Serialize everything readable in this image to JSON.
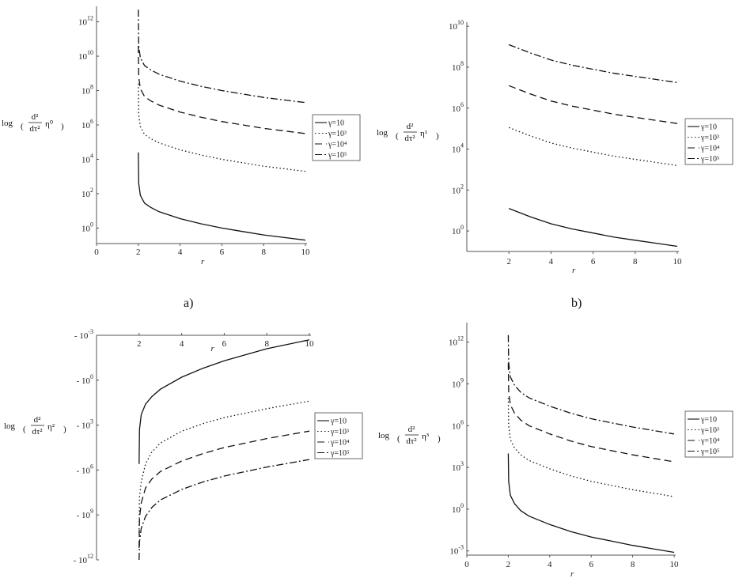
{
  "panel_labels": [
    "a)",
    "b)"
  ],
  "chart_data": [
    {
      "type": "line",
      "panel": "a",
      "xlabel": "r",
      "ylabel_lines": [
        "log",
        "d²",
        "dτ²",
        "η⁰"
      ],
      "xlim": [
        0,
        10
      ],
      "x_ticks": [
        0,
        2,
        4,
        6,
        8,
        10
      ],
      "y_scale": "log",
      "y_ticks": [
        "10^0",
        "10^2",
        "10^4",
        "10^6",
        "10^8",
        "10^10",
        "10^12"
      ],
      "legend": {
        "position": "right",
        "entries": [
          "γ=10",
          "γ=10³",
          "γ=10⁴",
          "γ=10⁵"
        ]
      },
      "series": [
        {
          "name": "γ=10",
          "style": "solid",
          "x": [
            2.001,
            2.02,
            2.1,
            2.3,
            2.6,
            3,
            4,
            5,
            6,
            7,
            8,
            9,
            10
          ],
          "log10_y": [
            4.4,
            2.6,
            1.9,
            1.45,
            1.2,
            0.95,
            0.55,
            0.25,
            0.0,
            -0.2,
            -0.4,
            -0.55,
            -0.7
          ]
        },
        {
          "name": "γ=10³",
          "style": "dotted",
          "x": [
            2.001,
            2.02,
            2.1,
            2.3,
            2.6,
            3,
            4,
            5,
            6,
            7,
            8,
            9,
            10
          ],
          "log10_y": [
            8.4,
            6.6,
            5.9,
            5.45,
            5.2,
            4.95,
            4.55,
            4.25,
            4.0,
            3.8,
            3.6,
            3.45,
            3.3
          ]
        },
        {
          "name": "γ=10⁴",
          "style": "dashed",
          "x": [
            2.001,
            2.02,
            2.1,
            2.3,
            2.6,
            3,
            4,
            5,
            6,
            7,
            8,
            9,
            10
          ],
          "log10_y": [
            10.6,
            8.8,
            8.1,
            7.65,
            7.4,
            7.15,
            6.75,
            6.45,
            6.2,
            6.0,
            5.8,
            5.65,
            5.5
          ]
        },
        {
          "name": "γ=10⁵",
          "style": "dashdot",
          "x": [
            2.001,
            2.02,
            2.1,
            2.3,
            2.6,
            3,
            4,
            5,
            6,
            7,
            8,
            9,
            10
          ],
          "log10_y": [
            12.7,
            10.6,
            9.9,
            9.45,
            9.2,
            8.95,
            8.55,
            8.25,
            8.0,
            7.8,
            7.6,
            7.45,
            7.3
          ]
        }
      ]
    },
    {
      "type": "line",
      "panel": "b",
      "xlabel": "r",
      "ylabel_lines": [
        "log",
        "d²",
        "dτ²",
        "η¹"
      ],
      "xlim": [
        0,
        10
      ],
      "x_ticks": [
        2,
        4,
        6,
        8,
        10
      ],
      "y_scale": "log",
      "y_ticks": [
        "10^0",
        "10^2",
        "10^4",
        "10^6",
        "10^8",
        "10^10"
      ],
      "legend": {
        "position": "right",
        "entries": [
          "γ=10",
          "γ=10³",
          "γ=10⁴",
          "γ=10⁵"
        ]
      },
      "series": [
        {
          "name": "γ=10",
          "style": "solid",
          "x": [
            2,
            3,
            4,
            5,
            6,
            7,
            8,
            9,
            10
          ],
          "log10_y": [
            1.1,
            0.7,
            0.35,
            0.1,
            -0.1,
            -0.3,
            -0.45,
            -0.6,
            -0.75
          ]
        },
        {
          "name": "γ=10³",
          "style": "dotted",
          "x": [
            2,
            3,
            4,
            5,
            6,
            7,
            8,
            9,
            10
          ],
          "log10_y": [
            5.05,
            4.65,
            4.3,
            4.05,
            3.85,
            3.65,
            3.5,
            3.35,
            3.2
          ]
        },
        {
          "name": "γ=10⁴",
          "style": "dashed",
          "x": [
            2,
            3,
            4,
            5,
            6,
            7,
            8,
            9,
            10
          ],
          "log10_y": [
            7.1,
            6.7,
            6.35,
            6.1,
            5.9,
            5.7,
            5.55,
            5.4,
            5.25
          ]
        },
        {
          "name": "γ=10⁵",
          "style": "dashdot",
          "x": [
            2,
            3,
            4,
            5,
            6,
            7,
            8,
            9,
            10
          ],
          "log10_y": [
            9.1,
            8.7,
            8.35,
            8.1,
            7.9,
            7.7,
            7.55,
            7.4,
            7.25
          ]
        }
      ]
    },
    {
      "type": "line",
      "panel": "c",
      "xlabel": "r",
      "ylabel_lines": [
        "log",
        "d²",
        "dτ²",
        "η²"
      ],
      "xlim": [
        0,
        10
      ],
      "x_ticks": [
        2,
        4,
        6,
        8,
        10
      ],
      "y_scale": "negative-log",
      "y_ticks": [
        "- 10^-3",
        "- 10^0",
        "- 10^3",
        "- 10^6",
        "- 10^9",
        "- 10^12"
      ],
      "legend": {
        "position": "right",
        "entries": [
          "γ=10",
          "γ=10³",
          "γ=10⁴",
          "γ=10⁵"
        ]
      },
      "series": [
        {
          "name": "γ=10",
          "style": "solid",
          "x": [
            2.001,
            2.02,
            2.1,
            2.3,
            2.6,
            3,
            4,
            5,
            6,
            7,
            8,
            9,
            10
          ],
          "log10_abs_y": [
            5.6,
            3.3,
            2.3,
            1.6,
            1.1,
            0.6,
            -0.2,
            -0.8,
            -1.3,
            -1.7,
            -2.1,
            -2.4,
            -2.7
          ]
        },
        {
          "name": "γ=10³",
          "style": "dotted",
          "x": [
            2.001,
            2.02,
            2.1,
            2.3,
            2.6,
            3,
            4,
            5,
            6,
            7,
            8,
            9,
            10
          ],
          "log10_abs_y": [
            10.2,
            7.8,
            6.8,
            5.6,
            4.8,
            4.2,
            3.4,
            2.9,
            2.5,
            2.2,
            1.9,
            1.65,
            1.4
          ]
        },
        {
          "name": "γ=10⁴",
          "style": "dashed",
          "x": [
            2.001,
            2.02,
            2.1,
            2.3,
            2.6,
            3,
            4,
            5,
            6,
            7,
            8,
            9,
            10
          ],
          "log10_abs_y": [
            11.2,
            9.2,
            8.2,
            7.2,
            6.6,
            6.1,
            5.4,
            4.9,
            4.5,
            4.2,
            3.9,
            3.65,
            3.4
          ]
        },
        {
          "name": "γ=10⁵",
          "style": "dashdot",
          "x": [
            2.001,
            2.02,
            2.1,
            2.3,
            2.6,
            3,
            4,
            5,
            6,
            7,
            8,
            9,
            10
          ],
          "log10_abs_y": [
            12.0,
            10.8,
            9.9,
            9.1,
            8.5,
            8.0,
            7.3,
            6.8,
            6.4,
            6.1,
            5.8,
            5.55,
            5.3
          ]
        }
      ]
    },
    {
      "type": "line",
      "panel": "d",
      "xlabel": "r",
      "ylabel_lines": [
        "log",
        "d²",
        "dτ²",
        "η³"
      ],
      "xlim": [
        0,
        10
      ],
      "x_ticks": [
        0,
        2,
        4,
        6,
        8,
        10
      ],
      "y_scale": "log",
      "y_ticks": [
        "10^-3",
        "10^0",
        "10^3",
        "10^6",
        "10^9",
        "10^12"
      ],
      "legend": {
        "position": "right",
        "entries": [
          "γ=10",
          "γ=10³",
          "γ=10⁴",
          "γ=10⁵"
        ]
      },
      "series": [
        {
          "name": "γ=10",
          "style": "solid",
          "x": [
            2.001,
            2.02,
            2.1,
            2.3,
            2.6,
            3,
            4,
            5,
            6,
            7,
            8,
            9,
            10
          ],
          "log10_y": [
            4.0,
            2.0,
            1.0,
            0.4,
            -0.1,
            -0.5,
            -1.1,
            -1.6,
            -2.0,
            -2.3,
            -2.6,
            -2.85,
            -3.1
          ]
        },
        {
          "name": "γ=10³",
          "style": "dotted",
          "x": [
            2.001,
            2.02,
            2.1,
            2.3,
            2.6,
            3,
            4,
            5,
            6,
            7,
            8,
            9,
            10
          ],
          "log10_y": [
            8.0,
            6.0,
            5.0,
            4.4,
            3.9,
            3.5,
            2.9,
            2.4,
            2.0,
            1.7,
            1.4,
            1.15,
            0.9
          ]
        },
        {
          "name": "γ=10⁴",
          "style": "dashed",
          "x": [
            2.001,
            2.02,
            2.1,
            2.3,
            2.6,
            3,
            4,
            5,
            6,
            7,
            8,
            9,
            10
          ],
          "log10_y": [
            10.5,
            8.5,
            7.5,
            6.9,
            6.4,
            6.0,
            5.4,
            4.9,
            4.5,
            4.2,
            3.9,
            3.65,
            3.4
          ]
        },
        {
          "name": "γ=10⁵",
          "style": "dashdot",
          "x": [
            2.001,
            2.02,
            2.1,
            2.3,
            2.6,
            3,
            4,
            5,
            6,
            7,
            8,
            9,
            10
          ],
          "log10_y": [
            12.5,
            10.5,
            9.5,
            8.9,
            8.4,
            8.0,
            7.4,
            6.9,
            6.5,
            6.2,
            5.9,
            5.65,
            5.4
          ]
        }
      ]
    }
  ]
}
